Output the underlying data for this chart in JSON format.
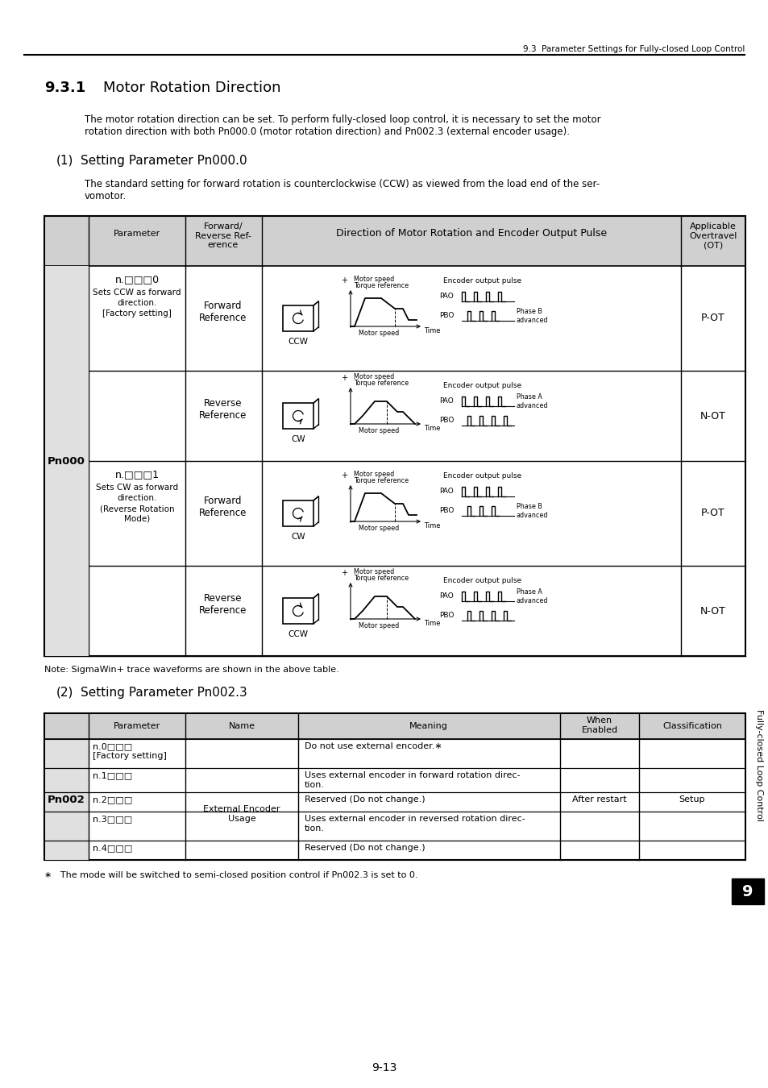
{
  "page_header": "9.3  Parameter Settings for Fully-closed Loop Control",
  "section_num": "9.3.1",
  "section_title": "Motor Rotation Direction",
  "intro": "The motor rotation direction can be set. To perform fully-closed loop control, it is necessary to set the motor\nrotation direction with both Pn000.0 (motor rotation direction) and Pn002.3 (external encoder usage).",
  "sub1_num": "(1)",
  "sub1_title": "Setting Parameter Pn000.0",
  "sub1_text": "The standard setting for forward rotation is counterclockwise (CCW) as viewed from the load end of the ser-\nvomotor.",
  "note": "Note: SigmaWin+ trace waveforms are shown in the above table.",
  "sub2_num": "(2)",
  "sub2_title": "Setting Parameter Pn002.3",
  "footnote": "∗   The mode will be switched to semi-closed position control if Pn002.3 is set to 0.",
  "page_num": "9-13",
  "sidebar": "Fully-closed Loop Control",
  "chapter": "9",
  "t1_rows": [
    {
      "param": "n.□□□0",
      "param2": "Sets CCW as forward\ndirection.\n[Factory setting]",
      "fwdrev": "Forward\nReference",
      "ot": "P-OT",
      "cw": false,
      "neg": false,
      "phase_a": false
    },
    {
      "param": "",
      "param2": "",
      "fwdrev": "Reverse\nReference",
      "ot": "N-OT",
      "cw": true,
      "neg": true,
      "phase_a": true
    },
    {
      "param": "n.□□□1",
      "param2": "Sets CW as forward\ndirection.\n(Reverse Rotation\nMode)",
      "fwdrev": "Forward\nReference",
      "ot": "P-OT",
      "cw": true,
      "neg": false,
      "phase_a": false
    },
    {
      "param": "",
      "param2": "",
      "fwdrev": "Reverse\nReference",
      "ot": "N-OT",
      "cw": false,
      "neg": true,
      "phase_a": true
    }
  ],
  "t2_rows": [
    {
      "param": "n.0□□□\n[Factory setting]",
      "name": "",
      "meaning": "Do not use external encoder.∗",
      "when": "",
      "cls": ""
    },
    {
      "param": "n.1□□□",
      "name": "External Encoder\nUsage",
      "meaning": "Uses external encoder in forward rotation direc-\ntion.",
      "when": "After restart",
      "cls": "Setup"
    },
    {
      "param": "n.2□□□",
      "name": "",
      "meaning": "Reserved (Do not change.)",
      "when": "",
      "cls": ""
    },
    {
      "param": "n.3□□□",
      "name": "",
      "meaning": "Uses external encoder in reversed rotation direc-\ntion.",
      "when": "",
      "cls": ""
    },
    {
      "param": "n.4□□□",
      "name": "",
      "meaning": "Reserved (Do not change.)",
      "when": "",
      "cls": ""
    }
  ]
}
